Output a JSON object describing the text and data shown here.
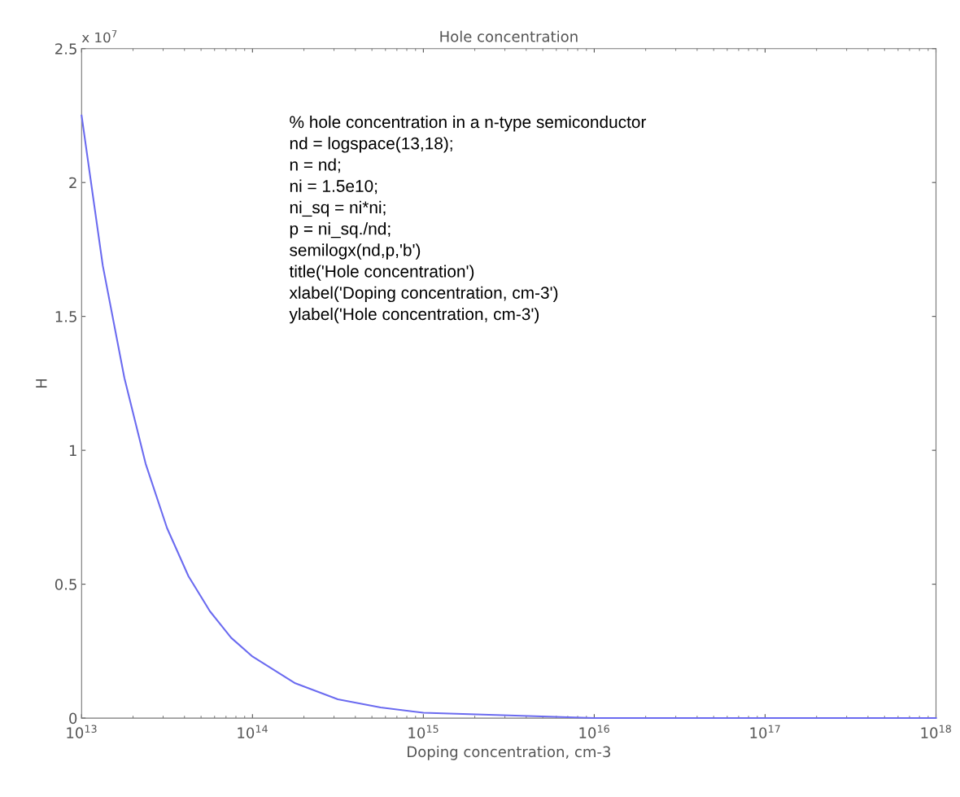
{
  "chart_data": {
    "type": "line",
    "title": "Hole concentration",
    "xlabel": "Doping concentration, cm-3",
    "ylabel": "H",
    "annotations": [
      "x 10$^{7}$",
      "% hole concentration in a n-type semiconductor\nnd = logspace(13,18);\nn = nd;\nni = 1.5e10;\nni_sq = ni*ni;\np = ni_sq./nd;\nsemilogx(nd,p,'b')\ntitle('Hole concentration')\nxlabel('Doping concentration, cm-3')\nylabel('Hole concentration, cm-3')"
    ],
    "log": "x",
    "grid": false,
    "marker": "none",
    "line_style": "solid",
    "x": [
      10000000000000.0,
      13300000000000.0,
      17800000000000.0,
      23700000000000.0,
      31600000000000.0,
      42200000000000.0,
      56200000000000.0,
      75000000000000.0,
      100000000000000.0,
      178000000000000.0,
      316000000000000.0,
      562000000000000.0,
      1000000000000000.0,
      3160000000000000.0,
      1e+16,
      1e+17,
      1e+18
    ],
    "series": [
      {
        "color": "#6b6bf0",
        "values": [
          2.25,
          1.69,
          1.27,
          0.95,
          0.71,
          0.53,
          0.4,
          0.3,
          0.23,
          0.13,
          0.07,
          0.04,
          0.02,
          0.01,
          0,
          0,
          0
        ]
      }
    ],
    "xlim": [
      10000000000000.0,
      1e+18
    ],
    "xticks": [
      {
        "value": 10000000000000.0,
        "label": "10$^{13}$"
      },
      {
        "value": 100000000000000.0,
        "label": "10$^{14}$"
      },
      {
        "value": 1000000000000000.0,
        "label": "10$^{15}$"
      },
      {
        "value": 1e+16,
        "label": "10$^{16}$"
      },
      {
        "value": 1e+17,
        "label": "10$^{17}$"
      },
      {
        "value": 1e+18,
        "label": "10$^{18}$"
      }
    ],
    "ylim": [
      0,
      2.5
    ],
    "yticks": [
      0,
      0.5,
      1,
      1.5,
      2,
      2.5
    ]
  }
}
